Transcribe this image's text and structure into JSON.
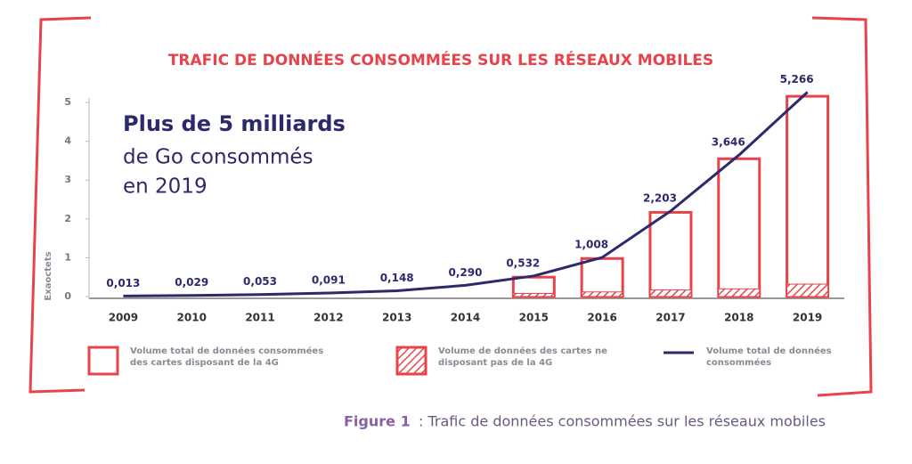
{
  "chart_data": {
    "type": "bar",
    "title": "TRAFIC DE DONNÉES CONSOMMÉES SUR LES RÉSEAUX MOBILES",
    "annotation": [
      "Plus de 5 milliards",
      "de Go consommés",
      "en 2019"
    ],
    "ylabel": "Exaoctets",
    "categories": [
      "2009",
      "2010",
      "2011",
      "2012",
      "2013",
      "2014",
      "2015",
      "2016",
      "2017",
      "2018",
      "2019"
    ],
    "series": [
      {
        "name": "Volume total de données consommées des cartes disposant de la 4G",
        "type": "bar",
        "pattern": "outline",
        "color": "#e8434b",
        "values": [
          null,
          null,
          null,
          null,
          null,
          null,
          0.5,
          0.98,
          2.17,
          3.55,
          5.16
        ]
      },
      {
        "name": "Volume de données des cartes ne disposant pas de la 4G",
        "type": "bar",
        "pattern": "hatch",
        "color": "#e8434b",
        "values": [
          null,
          null,
          null,
          null,
          null,
          null,
          0.08,
          0.12,
          0.17,
          0.2,
          0.32
        ]
      },
      {
        "name": "Volume total de données consommées",
        "type": "line",
        "color": "#2b2a6b",
        "values": [
          0.013,
          0.029,
          0.053,
          0.091,
          0.148,
          0.29,
          0.532,
          1.008,
          2.203,
          3.646,
          5.266
        ],
        "value_labels": [
          "0,013",
          "0,029",
          "0,053",
          "0,091",
          "0,148",
          "0,290",
          "0,532",
          "1,008",
          "2,203",
          "3,646",
          "5,266"
        ]
      }
    ],
    "ylim": [
      0,
      5.3
    ],
    "yticks": [
      0,
      1,
      2,
      3,
      4,
      5
    ]
  },
  "caption": {
    "label": "Figure 1",
    "text": ": Trafic de données consommées sur les réseaux mobiles"
  }
}
